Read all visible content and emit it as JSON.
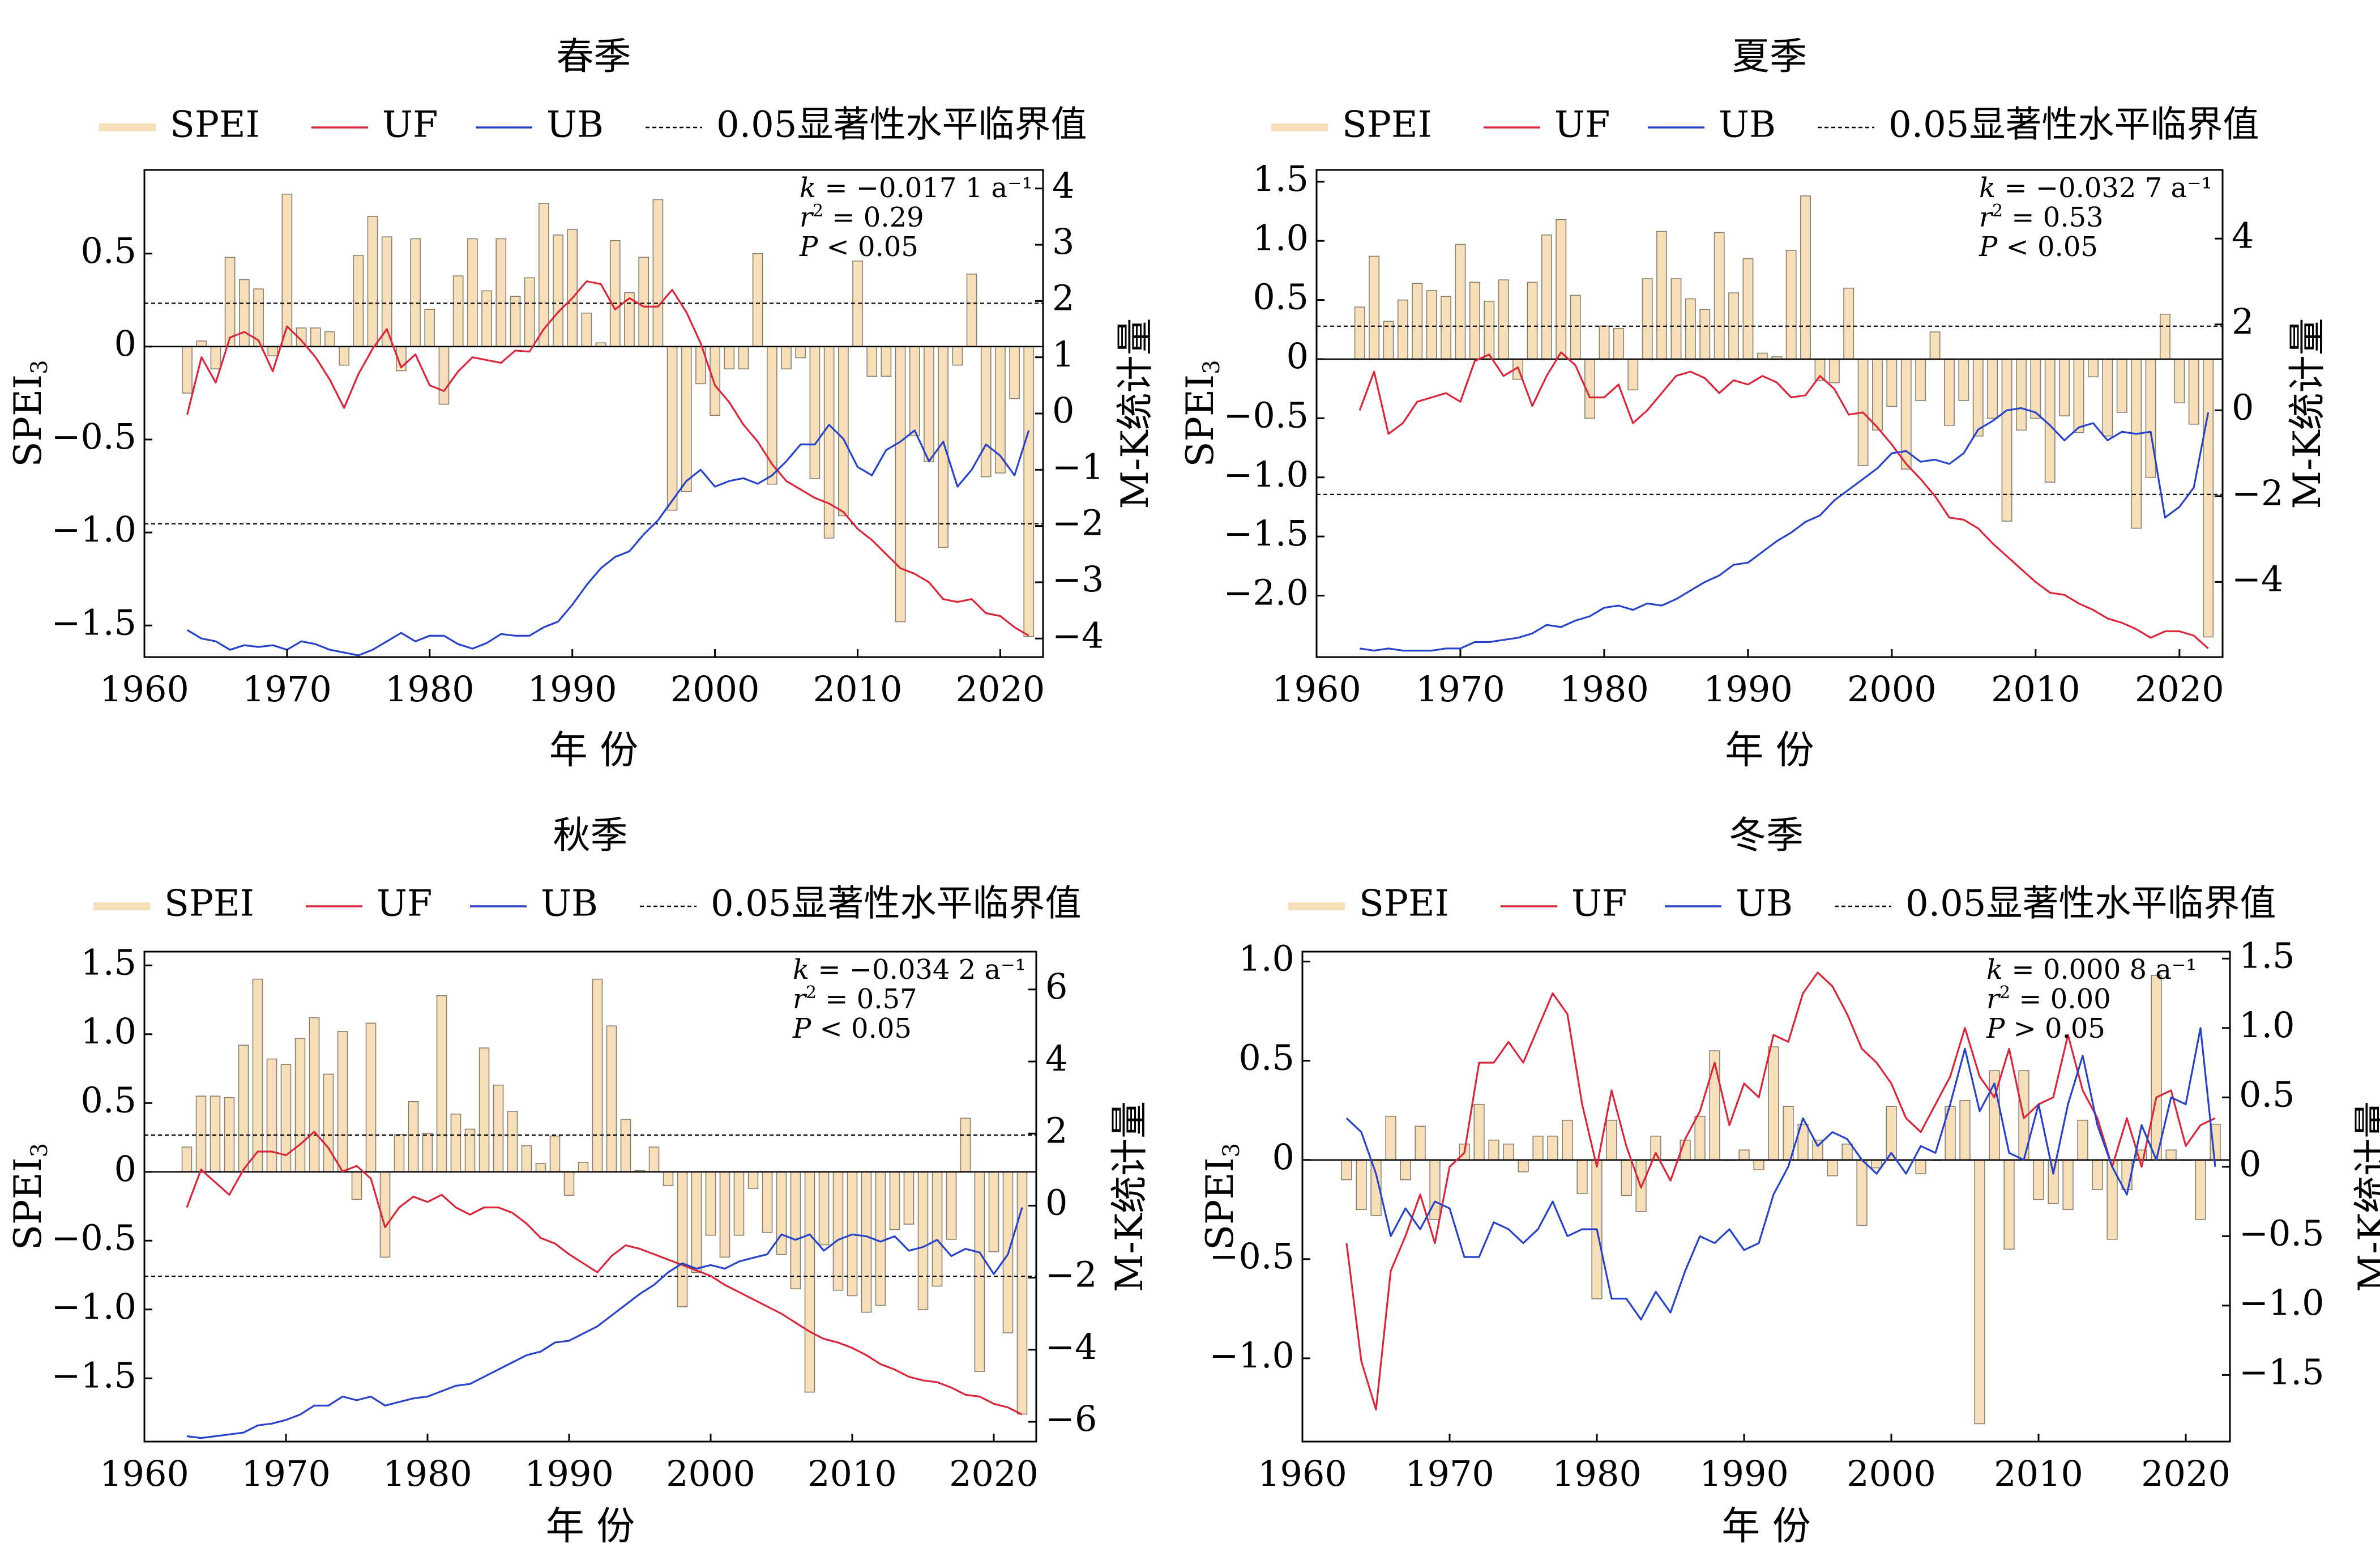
{
  "legend": {
    "spei": "SPEI",
    "uf": "UF",
    "ub": "UB",
    "crit": "0.05显著性水平临界值"
  },
  "colors": {
    "bar_fill": "#f7dfb9",
    "bar_stroke": "#8a8070",
    "uf": "#d9263b",
    "ub": "#2743c9",
    "axis": "#000000"
  },
  "ylabel_left": "SPEI",
  "ylabel_sub": "3",
  "ylabel_right": "M-K统计量",
  "xlabel": "年 份",
  "chart_data": [
    {
      "type": "bar",
      "title": "春季",
      "stats": {
        "k_label": "k",
        "k_value": "= −0.017 1 a⁻¹",
        "r_label": "r",
        "r_value": "= 0.29",
        "p_label": "P",
        "p_value": "< 0.05"
      },
      "years": [
        1963,
        1964,
        1965,
        1966,
        1967,
        1968,
        1969,
        1970,
        1971,
        1972,
        1973,
        1974,
        1975,
        1976,
        1977,
        1978,
        1979,
        1980,
        1981,
        1982,
        1983,
        1984,
        1985,
        1986,
        1987,
        1988,
        1989,
        1990,
        1991,
        1992,
        1993,
        1994,
        1995,
        1996,
        1997,
        1998,
        1999,
        2000,
        2001,
        2002,
        2003,
        2004,
        2005,
        2006,
        2007,
        2008,
        2009,
        2010,
        2011,
        2012,
        2013,
        2014,
        2015,
        2016,
        2017,
        2018,
        2019,
        2020,
        2021,
        2022
      ],
      "spei": [
        -0.25,
        0.03,
        -0.12,
        0.48,
        0.36,
        0.31,
        -0.05,
        0.82,
        0.1,
        0.1,
        0.08,
        -0.1,
        0.49,
        0.7,
        0.59,
        -0.13,
        0.58,
        0.2,
        -0.31,
        0.38,
        0.58,
        0.3,
        0.58,
        0.27,
        0.37,
        0.77,
        0.6,
        0.63,
        0.18,
        0.02,
        0.57,
        0.29,
        0.48,
        0.79,
        -0.88,
        -0.78,
        -0.2,
        -0.37,
        -0.12,
        -0.12,
        0.5,
        -0.74,
        -0.12,
        -0.06,
        -0.71,
        -1.03,
        -0.91,
        0.46,
        -0.16,
        -0.16,
        -1.48,
        -0.48,
        -0.62,
        -1.08,
        -0.1,
        0.39,
        -0.7,
        -0.68,
        -0.28,
        -1.56
      ],
      "uf": [
        -0.02,
        1.0,
        0.55,
        1.35,
        1.45,
        1.3,
        0.75,
        1.55,
        1.3,
        1.0,
        0.6,
        0.1,
        0.7,
        1.15,
        1.5,
        0.82,
        1.05,
        0.5,
        0.4,
        0.75,
        1.0,
        0.95,
        0.9,
        1.12,
        1.1,
        1.5,
        1.8,
        2.05,
        2.35,
        2.3,
        1.85,
        2.05,
        1.9,
        1.9,
        2.2,
        1.8,
        1.25,
        0.5,
        0.2,
        -0.2,
        -0.5,
        -0.9,
        -1.2,
        -1.35,
        -1.5,
        -1.6,
        -1.75,
        -2.05,
        -2.25,
        -2.5,
        -2.75,
        -2.85,
        -3.0,
        -3.3,
        -3.35,
        -3.3,
        -3.55,
        -3.6,
        -3.8,
        -3.95
      ],
      "ub": [
        -3.85,
        -4.0,
        -4.05,
        -4.2,
        -4.12,
        -4.15,
        -4.12,
        -4.2,
        -4.05,
        -4.1,
        -4.2,
        -4.25,
        -4.3,
        -4.2,
        -4.05,
        -3.9,
        -4.05,
        -3.95,
        -3.95,
        -4.1,
        -4.18,
        -4.08,
        -3.92,
        -3.95,
        -3.95,
        -3.8,
        -3.7,
        -3.4,
        -3.05,
        -2.75,
        -2.55,
        -2.45,
        -2.15,
        -1.9,
        -1.55,
        -1.2,
        -1.0,
        -1.3,
        -1.2,
        -1.15,
        -1.25,
        -1.1,
        -0.85,
        -0.55,
        -0.55,
        -0.2,
        -0.45,
        -0.95,
        -1.1,
        -0.65,
        -0.5,
        -0.3,
        -0.85,
        -0.5,
        -1.3,
        -1.0,
        -0.55,
        -0.75,
        -1.1,
        -0.3
      ],
      "ylim_left": [
        -1.67,
        0.95
      ],
      "yticks_left": [
        -1.5,
        -1.0,
        -0.5,
        0,
        0.5
      ],
      "ytick_labels_left": [
        "−1.5",
        "−1.0",
        "−0.5",
        "0",
        "0.5"
      ],
      "ylim_right": [
        -4.33,
        4.33
      ],
      "yticks_right": [
        -4,
        -3,
        -2,
        -1,
        0,
        1,
        2,
        3,
        4
      ],
      "ytick_labels_right": [
        "−4",
        "−3",
        "−2",
        "−1",
        "0",
        "1",
        "2",
        "3",
        "4"
      ],
      "crit": [
        1.96,
        -1.96
      ],
      "xlim": [
        1960,
        2023
      ],
      "xticks": [
        1960,
        1970,
        1980,
        1990,
        2000,
        2010,
        2020
      ],
      "xtick_labels": [
        "1960",
        "1970",
        "1980",
        "1990",
        "2000",
        "2010",
        "2020"
      ]
    },
    {
      "type": "bar",
      "title": "夏季",
      "stats": {
        "k_label": "k",
        "k_value": "= −0.032 7 a⁻¹",
        "r_label": "r",
        "r_value": "= 0.53",
        "p_label": "P",
        "p_value": "< 0.05"
      },
      "years": [
        1963,
        1964,
        1965,
        1966,
        1967,
        1968,
        1969,
        1970,
        1971,
        1972,
        1973,
        1974,
        1975,
        1976,
        1977,
        1978,
        1979,
        1980,
        1981,
        1982,
        1983,
        1984,
        1985,
        1986,
        1987,
        1988,
        1989,
        1990,
        1991,
        1992,
        1993,
        1994,
        1995,
        1996,
        1997,
        1998,
        1999,
        2000,
        2001,
        2002,
        2003,
        2004,
        2005,
        2006,
        2007,
        2008,
        2009,
        2010,
        2011,
        2012,
        2013,
        2014,
        2015,
        2016,
        2017,
        2018,
        2019,
        2020,
        2021,
        2022
      ],
      "spei": [
        0.44,
        0.87,
        0.32,
        0.5,
        0.64,
        0.58,
        0.53,
        0.97,
        0.65,
        0.49,
        0.67,
        -0.17,
        0.65,
        1.05,
        1.18,
        0.54,
        -0.5,
        0.28,
        0.26,
        -0.26,
        0.68,
        1.08,
        0.68,
        0.51,
        0.42,
        1.07,
        0.56,
        0.85,
        0.05,
        0.02,
        0.92,
        1.38,
        -0.18,
        -0.2,
        0.6,
        -0.9,
        -0.6,
        -0.4,
        -0.93,
        -0.35,
        0.23,
        -0.56,
        -0.35,
        -0.65,
        -0.5,
        -1.37,
        -0.6,
        -0.5,
        -1.04,
        -0.48,
        -0.62,
        -0.15,
        -0.65,
        -0.45,
        -1.43,
        -1.0,
        0.38,
        -0.37,
        -0.55,
        -2.35
      ],
      "uf": [
        0.0,
        0.9,
        -0.55,
        -0.3,
        0.2,
        0.3,
        0.4,
        0.2,
        1.15,
        1.3,
        0.8,
        1.0,
        0.1,
        0.8,
        1.35,
        1.05,
        0.3,
        0.3,
        0.6,
        -0.3,
        0.0,
        0.4,
        0.8,
        0.9,
        0.75,
        0.4,
        0.7,
        0.6,
        0.8,
        0.65,
        0.3,
        0.35,
        0.8,
        0.5,
        -0.1,
        -0.05,
        -0.4,
        -0.8,
        -1.25,
        -1.6,
        -2.0,
        -2.5,
        -2.55,
        -2.75,
        -3.1,
        -3.4,
        -3.7,
        -4.0,
        -4.25,
        -4.3,
        -4.5,
        -4.65,
        -4.85,
        -4.95,
        -5.1,
        -5.3,
        -5.15,
        -5.15,
        -5.25,
        -5.55
      ],
      "ub": [
        -5.55,
        -5.6,
        -5.55,
        -5.6,
        -5.6,
        -5.6,
        -5.55,
        -5.55,
        -5.4,
        -5.4,
        -5.35,
        -5.3,
        -5.2,
        -5.0,
        -5.05,
        -4.9,
        -4.8,
        -4.6,
        -4.55,
        -4.65,
        -4.5,
        -4.55,
        -4.4,
        -4.2,
        -4.0,
        -3.85,
        -3.6,
        -3.55,
        -3.3,
        -3.05,
        -2.85,
        -2.6,
        -2.45,
        -2.1,
        -1.85,
        -1.6,
        -1.35,
        -1.0,
        -0.95,
        -1.2,
        -1.15,
        -1.25,
        -1.0,
        -0.45,
        -0.25,
        0.0,
        0.05,
        -0.05,
        -0.35,
        -0.7,
        -0.4,
        -0.3,
        -0.7,
        -0.5,
        -0.55,
        -0.5,
        -2.5,
        -2.25,
        -1.8,
        -0.05
      ],
      "ylim_left": [
        -2.52,
        1.6
      ],
      "yticks_left": [
        -2.0,
        -1.5,
        -1.0,
        -0.5,
        0,
        0.5,
        1.0,
        1.5
      ],
      "ytick_labels_left": [
        "−2.0",
        "−1.5",
        "−1.0",
        "−0.5",
        "0",
        "0.5",
        "1.0",
        "1.5"
      ],
      "ylim_right": [
        -5.75,
        5.6
      ],
      "yticks_right": [
        -4,
        -2,
        0,
        2,
        4
      ],
      "ytick_labels_right": [
        "−4",
        "−2",
        "0",
        "2",
        "4"
      ],
      "crit": [
        1.96,
        -1.96
      ],
      "xlim": [
        1960,
        2023
      ],
      "xticks": [
        1960,
        1970,
        1980,
        1990,
        2000,
        2010,
        2020
      ],
      "xtick_labels": [
        "1960",
        "1970",
        "1980",
        "1990",
        "2000",
        "2010",
        "2020"
      ]
    },
    {
      "type": "bar",
      "title": "秋季",
      "stats": {
        "k_label": "k",
        "k_value": "= −0.034 2 a⁻¹",
        "r_label": "r",
        "r_value": "= 0.57",
        "p_label": "P",
        "p_value": "< 0.05"
      },
      "years": [
        1963,
        1964,
        1965,
        1966,
        1967,
        1968,
        1969,
        1970,
        1971,
        1972,
        1973,
        1974,
        1975,
        1976,
        1977,
        1978,
        1979,
        1980,
        1981,
        1982,
        1983,
        1984,
        1985,
        1986,
        1987,
        1988,
        1989,
        1990,
        1991,
        1992,
        1993,
        1994,
        1995,
        1996,
        1997,
        1998,
        1999,
        2000,
        2001,
        2002,
        2003,
        2004,
        2005,
        2006,
        2007,
        2008,
        2009,
        2010,
        2011,
        2012,
        2013,
        2014,
        2015,
        2016,
        2017,
        2018,
        2019,
        2020,
        2021,
        2022
      ],
      "spei": [
        0.18,
        0.55,
        0.55,
        0.54,
        0.92,
        1.4,
        0.82,
        0.78,
        0.97,
        1.12,
        0.71,
        1.02,
        -0.2,
        1.08,
        -0.62,
        0.27,
        0.51,
        0.28,
        1.28,
        0.42,
        0.31,
        0.9,
        0.63,
        0.44,
        0.19,
        0.06,
        0.26,
        -0.17,
        0.07,
        1.4,
        1.06,
        0.38,
        0.01,
        0.18,
        -0.1,
        -0.98,
        -0.73,
        -0.46,
        -0.62,
        -0.46,
        -0.12,
        -0.44,
        -0.6,
        -0.85,
        -1.6,
        -0.53,
        -0.86,
        -0.9,
        -1.02,
        -0.97,
        -0.42,
        -0.38,
        -1.0,
        -0.83,
        -0.49,
        0.39,
        -1.45,
        -0.58,
        -1.17,
        -1.76
      ],
      "uf": [
        -0.05,
        1.0,
        0.65,
        0.3,
        1.0,
        1.5,
        1.5,
        1.4,
        1.7,
        2.05,
        1.6,
        0.95,
        1.1,
        0.75,
        -0.6,
        -0.05,
        0.25,
        0.1,
        0.3,
        -0.05,
        -0.25,
        -0.05,
        -0.05,
        -0.2,
        -0.5,
        -0.9,
        -1.05,
        -1.35,
        -1.6,
        -1.85,
        -1.4,
        -1.1,
        -1.2,
        -1.35,
        -1.5,
        -1.65,
        -1.8,
        -1.95,
        -2.2,
        -2.4,
        -2.6,
        -2.8,
        -3.0,
        -3.25,
        -3.5,
        -3.7,
        -3.8,
        -3.95,
        -4.15,
        -4.4,
        -4.55,
        -4.75,
        -4.85,
        -4.9,
        -5.05,
        -5.25,
        -5.3,
        -5.5,
        -5.6,
        -5.8
      ],
      "ub": [
        -6.4,
        -6.45,
        -6.4,
        -6.35,
        -6.3,
        -6.1,
        -6.05,
        -5.95,
        -5.8,
        -5.55,
        -5.55,
        -5.3,
        -5.4,
        -5.3,
        -5.55,
        -5.45,
        -5.35,
        -5.3,
        -5.15,
        -5.0,
        -4.95,
        -4.75,
        -4.55,
        -4.35,
        -4.15,
        -4.05,
        -3.8,
        -3.75,
        -3.55,
        -3.35,
        -3.05,
        -2.75,
        -2.45,
        -2.2,
        -1.85,
        -1.6,
        -1.75,
        -1.65,
        -1.75,
        -1.55,
        -1.45,
        -1.35,
        -0.8,
        -0.95,
        -0.8,
        -1.25,
        -0.95,
        -0.8,
        -0.85,
        -1.0,
        -0.85,
        -1.25,
        -1.15,
        -0.95,
        -1.4,
        -1.2,
        -1.3,
        -1.9,
        -1.35,
        -0.05
      ],
      "ylim_left": [
        -1.96,
        1.6
      ],
      "yticks_left": [
        -1.5,
        -1.0,
        -0.5,
        0,
        0.5,
        1.0,
        1.5
      ],
      "ytick_labels_left": [
        "−1.5",
        "−1.0",
        "−0.5",
        "0",
        "0.5",
        "1.0",
        "1.5"
      ],
      "ylim_right": [
        -6.55,
        7.05
      ],
      "yticks_right": [
        -6,
        -4,
        -2,
        0,
        2,
        4,
        6
      ],
      "ytick_labels_right": [
        "−6",
        "−4",
        "−2",
        "0",
        "2",
        "4",
        "6"
      ],
      "crit": [
        1.96,
        -1.96
      ],
      "xlim": [
        1960,
        2023
      ],
      "xticks": [
        1960,
        1970,
        1980,
        1990,
        2000,
        2010,
        2020
      ],
      "xtick_labels": [
        "1960",
        "1970",
        "1980",
        "1990",
        "2000",
        "2010",
        "2020"
      ]
    },
    {
      "type": "bar",
      "title": "冬季",
      "stats": {
        "k_label": "k",
        "k_value": "= 0.000 8 a⁻¹",
        "r_label": "r",
        "r_value": "= 0.00",
        "p_label": "P",
        "p_value": "> 0.05"
      },
      "years": [
        1963,
        1964,
        1965,
        1966,
        1967,
        1968,
        1969,
        1970,
        1971,
        1972,
        1973,
        1974,
        1975,
        1976,
        1977,
        1978,
        1979,
        1980,
        1981,
        1982,
        1983,
        1984,
        1985,
        1986,
        1987,
        1988,
        1989,
        1990,
        1991,
        1992,
        1993,
        1994,
        1995,
        1996,
        1997,
        1998,
        1999,
        2000,
        2001,
        2002,
        2003,
        2004,
        2005,
        2006,
        2007,
        2008,
        2009,
        2010,
        2011,
        2012,
        2013,
        2014,
        2015,
        2016,
        2017,
        2018,
        2019,
        2020,
        2021,
        2022
      ],
      "spei": [
        -0.1,
        -0.25,
        -0.28,
        0.22,
        -0.1,
        0.17,
        -0.3,
        0.0,
        0.08,
        0.28,
        0.1,
        0.08,
        -0.06,
        0.12,
        0.12,
        0.2,
        -0.17,
        -0.7,
        0.2,
        -0.18,
        -0.26,
        0.12,
        0.0,
        0.1,
        0.22,
        0.55,
        0.0,
        0.05,
        -0.05,
        0.57,
        0.27,
        0.18,
        0.1,
        -0.08,
        0.08,
        -0.33,
        -0.04,
        0.27,
        0.0,
        -0.07,
        0.0,
        0.27,
        0.3,
        -1.33,
        0.45,
        -0.45,
        0.45,
        -0.2,
        -0.22,
        -0.25,
        0.2,
        -0.15,
        -0.4,
        -0.15,
        0.05,
        0.93,
        0.05,
        0.0,
        -0.3,
        0.18
      ],
      "uf": [
        -0.55,
        -1.4,
        -1.75,
        -0.75,
        -0.5,
        -0.2,
        -0.55,
        0.0,
        0.1,
        0.75,
        0.75,
        0.9,
        0.75,
        1.0,
        1.25,
        1.1,
        0.45,
        0.0,
        0.55,
        0.15,
        -0.15,
        0.1,
        -0.1,
        0.2,
        0.4,
        0.75,
        0.3,
        0.6,
        0.5,
        0.95,
        0.9,
        1.25,
        1.4,
        1.3,
        1.1,
        0.85,
        0.75,
        0.6,
        0.35,
        0.25,
        0.45,
        0.65,
        1.0,
        0.65,
        0.5,
        0.85,
        0.35,
        0.45,
        0.5,
        0.95,
        0.55,
        0.35,
        0.0,
        0.35,
        0.0,
        0.5,
        0.55,
        0.15,
        0.3,
        0.35
      ],
      "ub": [
        0.35,
        0.25,
        -0.05,
        -0.5,
        -0.3,
        -0.45,
        -0.25,
        -0.3,
        -0.65,
        -0.65,
        -0.4,
        -0.45,
        -0.55,
        -0.45,
        -0.25,
        -0.5,
        -0.45,
        -0.45,
        -0.95,
        -0.95,
        -1.1,
        -0.9,
        -1.05,
        -0.75,
        -0.5,
        -0.55,
        -0.45,
        -0.6,
        -0.55,
        -0.2,
        0.0,
        0.35,
        0.15,
        0.25,
        0.2,
        0.05,
        -0.05,
        0.1,
        -0.05,
        0.15,
        0.1,
        0.45,
        0.85,
        0.4,
        0.6,
        0.1,
        0.05,
        0.45,
        -0.05,
        0.45,
        0.8,
        0.3,
        0.0,
        -0.2,
        0.3,
        0.05,
        0.5,
        0.45,
        1.0,
        0.0
      ],
      "ylim_left": [
        -1.42,
        1.05
      ],
      "yticks_left": [
        -1.0,
        -0.5,
        0,
        0.5,
        1.0
      ],
      "ytick_labels_left": [
        "−1.0",
        "−0.5",
        "0",
        "0.5",
        "1.0"
      ],
      "ylim_right": [
        -1.98,
        1.55
      ],
      "yticks_right": [
        -1.5,
        -1.0,
        -0.5,
        0,
        0.5,
        1.0,
        1.5
      ],
      "ytick_labels_right": [
        "−1.5",
        "−1.0",
        "−0.5",
        "0",
        "0.5",
        "1.0",
        "1.5"
      ],
      "crit": [],
      "xlim": [
        1960,
        2023
      ],
      "xticks": [
        1960,
        1970,
        1980,
        1990,
        2000,
        2010,
        2020
      ],
      "xtick_labels": [
        "1960",
        "1970",
        "1980",
        "1990",
        "2000",
        "2010",
        "2020"
      ]
    }
  ]
}
